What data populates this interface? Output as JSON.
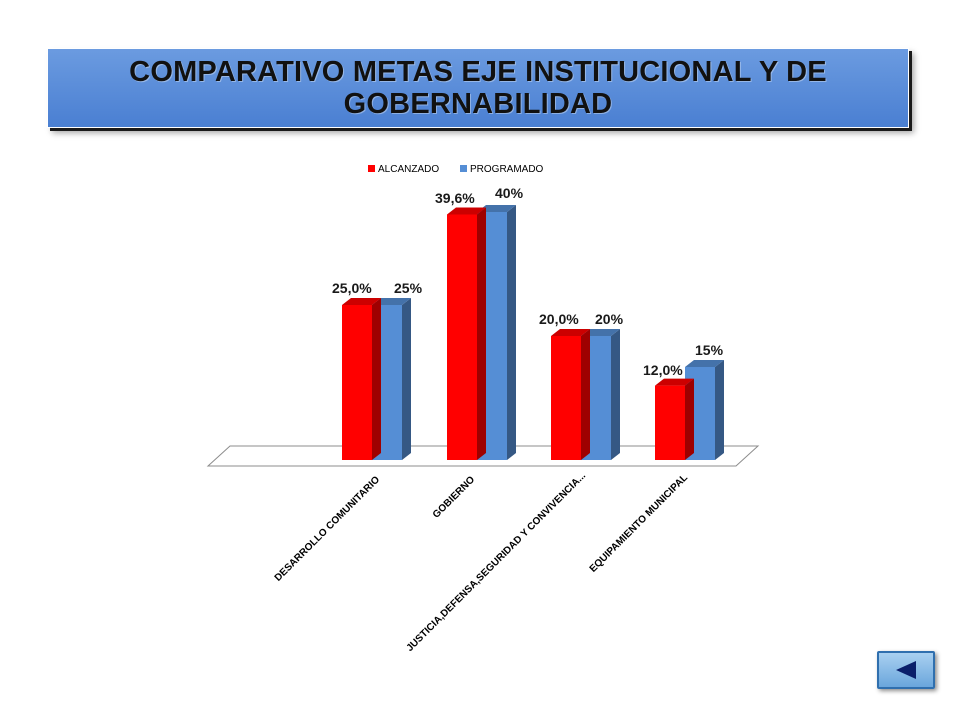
{
  "title": "COMPARATIVO METAS EJE INSTITUCIONAL Y DE GOBERNABILIDAD",
  "chart_data": {
    "type": "bar",
    "categories": [
      "DESARROLLO COMUNITARIO",
      "GOBIERNO",
      "JUSTICIA,DEFENSA,SEGURIDAD Y CONVIVENCIA...",
      "EQUIPAMIENTO MUNICIPAL"
    ],
    "series": [
      {
        "name": "ALCANZADO",
        "values": [
          25.0,
          39.6,
          20.0,
          12.0
        ],
        "labels": [
          "25,0%",
          "39,6%",
          "20,0%",
          "12,0%"
        ],
        "color": "#ff0000"
      },
      {
        "name": "PROGRAMADO",
        "values": [
          25,
          40,
          20,
          15
        ],
        "labels": [
          "25%",
          "40%",
          "20%",
          "15%"
        ],
        "color": "#558ed5"
      }
    ],
    "ylim": [
      0,
      40
    ],
    "legend": "top",
    "grid": false
  },
  "navigation": {
    "back_icon": "triangle-left-icon"
  }
}
